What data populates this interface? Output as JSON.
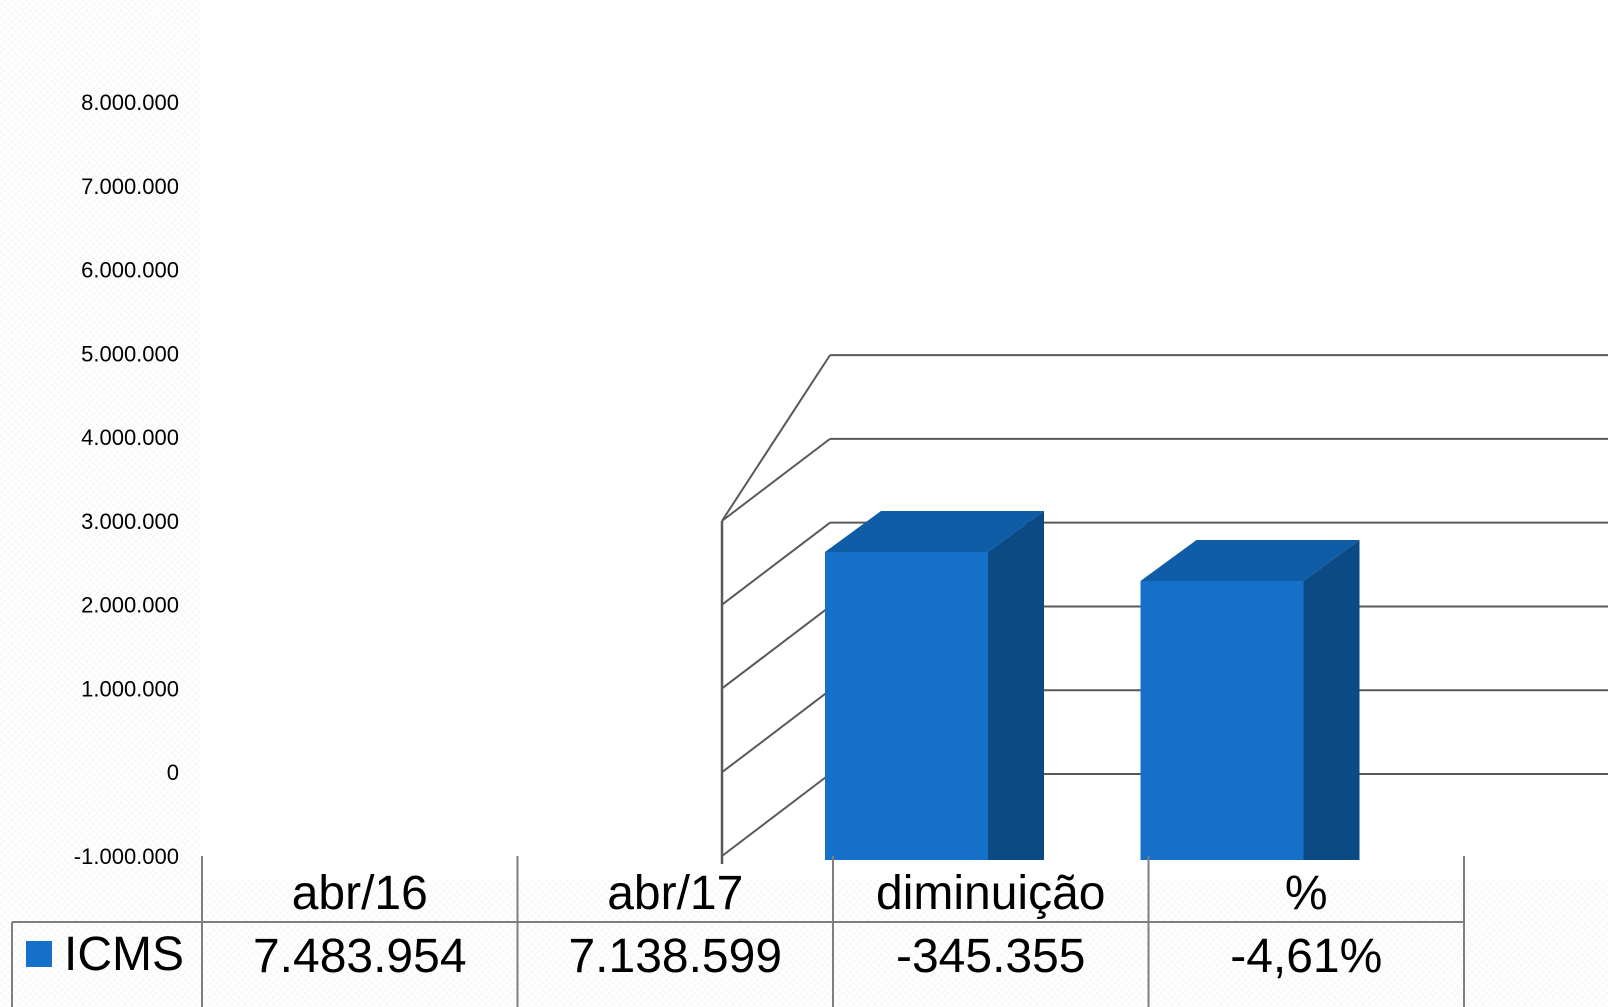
{
  "chart_data": {
    "type": "bar",
    "style": "3d-clustered-column-with-data-table",
    "categories": [
      "abr/16",
      "abr/17",
      "diminuição",
      "%"
    ],
    "series": [
      {
        "name": "ICMS",
        "values": [
          7483954,
          7138599,
          -345355,
          -4.61
        ],
        "labels": [
          "7.483.954",
          "7.138.599",
          "-345.355",
          "-4,61%"
        ],
        "color": "#1470C8"
      }
    ],
    "y_ticks": [
      "8.000.000",
      "7.000.000",
      "6.000.000",
      "5.000.000",
      "4.000.000",
      "3.000.000",
      "2.000.000",
      "1.000.000",
      "0",
      "-1.000.000"
    ],
    "ylim": [
      -1000000,
      8000000
    ],
    "grid": true,
    "legend": "in-data-table",
    "colors": {
      "bar_front": "#1470C8",
      "bar_side": "#0B4A85",
      "bar_top": "#0E5DA6",
      "grid": "#595959"
    }
  }
}
